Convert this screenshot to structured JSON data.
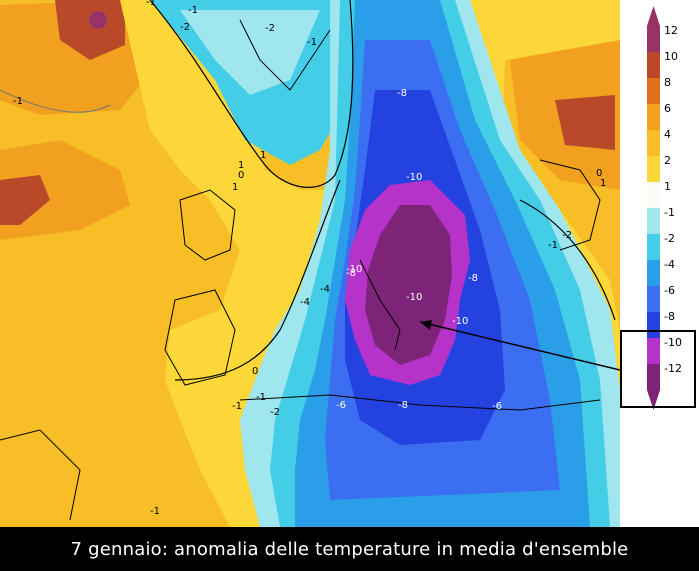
{
  "caption": "7 gennaio: anomalia delle temperature in media d'ensemble",
  "legend": {
    "ticks": [
      "12",
      "10",
      "8",
      "6",
      "4",
      "2",
      "1",
      "-1",
      "-2",
      "-4",
      "-6",
      "-8",
      "-10",
      "-12"
    ],
    "bins": [
      {
        "color": "#993366"
      },
      {
        "color": "#b84a2a"
      },
      {
        "color": "#e0701c"
      },
      {
        "color": "#f2a01f"
      },
      {
        "color": "#f7be26"
      },
      {
        "color": "#fbd838"
      },
      {
        "color": "#fcfcf2"
      },
      {
        "color": "#9fe6ef"
      },
      {
        "color": "#44cde6"
      },
      {
        "color": "#2a9ee9"
      },
      {
        "color": "#3b6ef0"
      },
      {
        "color": "#2442e0"
      },
      {
        "color": "#b633c9"
      },
      {
        "color": "#7d2478"
      }
    ]
  },
  "contour_labels": [
    {
      "text": "-1"
    },
    {
      "text": "-2"
    },
    {
      "text": "-1"
    },
    {
      "text": "-2"
    },
    {
      "text": "-1"
    },
    {
      "text": "-1"
    },
    {
      "text": "1"
    },
    {
      "text": "0"
    },
    {
      "text": "1"
    },
    {
      "text": "1"
    },
    {
      "text": "-8"
    },
    {
      "text": "-10"
    },
    {
      "text": "-8"
    },
    {
      "text": "-10"
    },
    {
      "text": "-8"
    },
    {
      "text": "-4"
    },
    {
      "text": "-4"
    },
    {
      "text": "-10"
    },
    {
      "text": "-10"
    },
    {
      "text": "-6"
    },
    {
      "text": "-8"
    },
    {
      "text": "-6"
    },
    {
      "text": "-1"
    },
    {
      "text": "-1"
    },
    {
      "text": "-2"
    },
    {
      "text": "0"
    },
    {
      "text": "-1"
    },
    {
      "text": "-2"
    },
    {
      "text": "0"
    },
    {
      "text": "1"
    },
    {
      "text": "-1"
    }
  ]
}
